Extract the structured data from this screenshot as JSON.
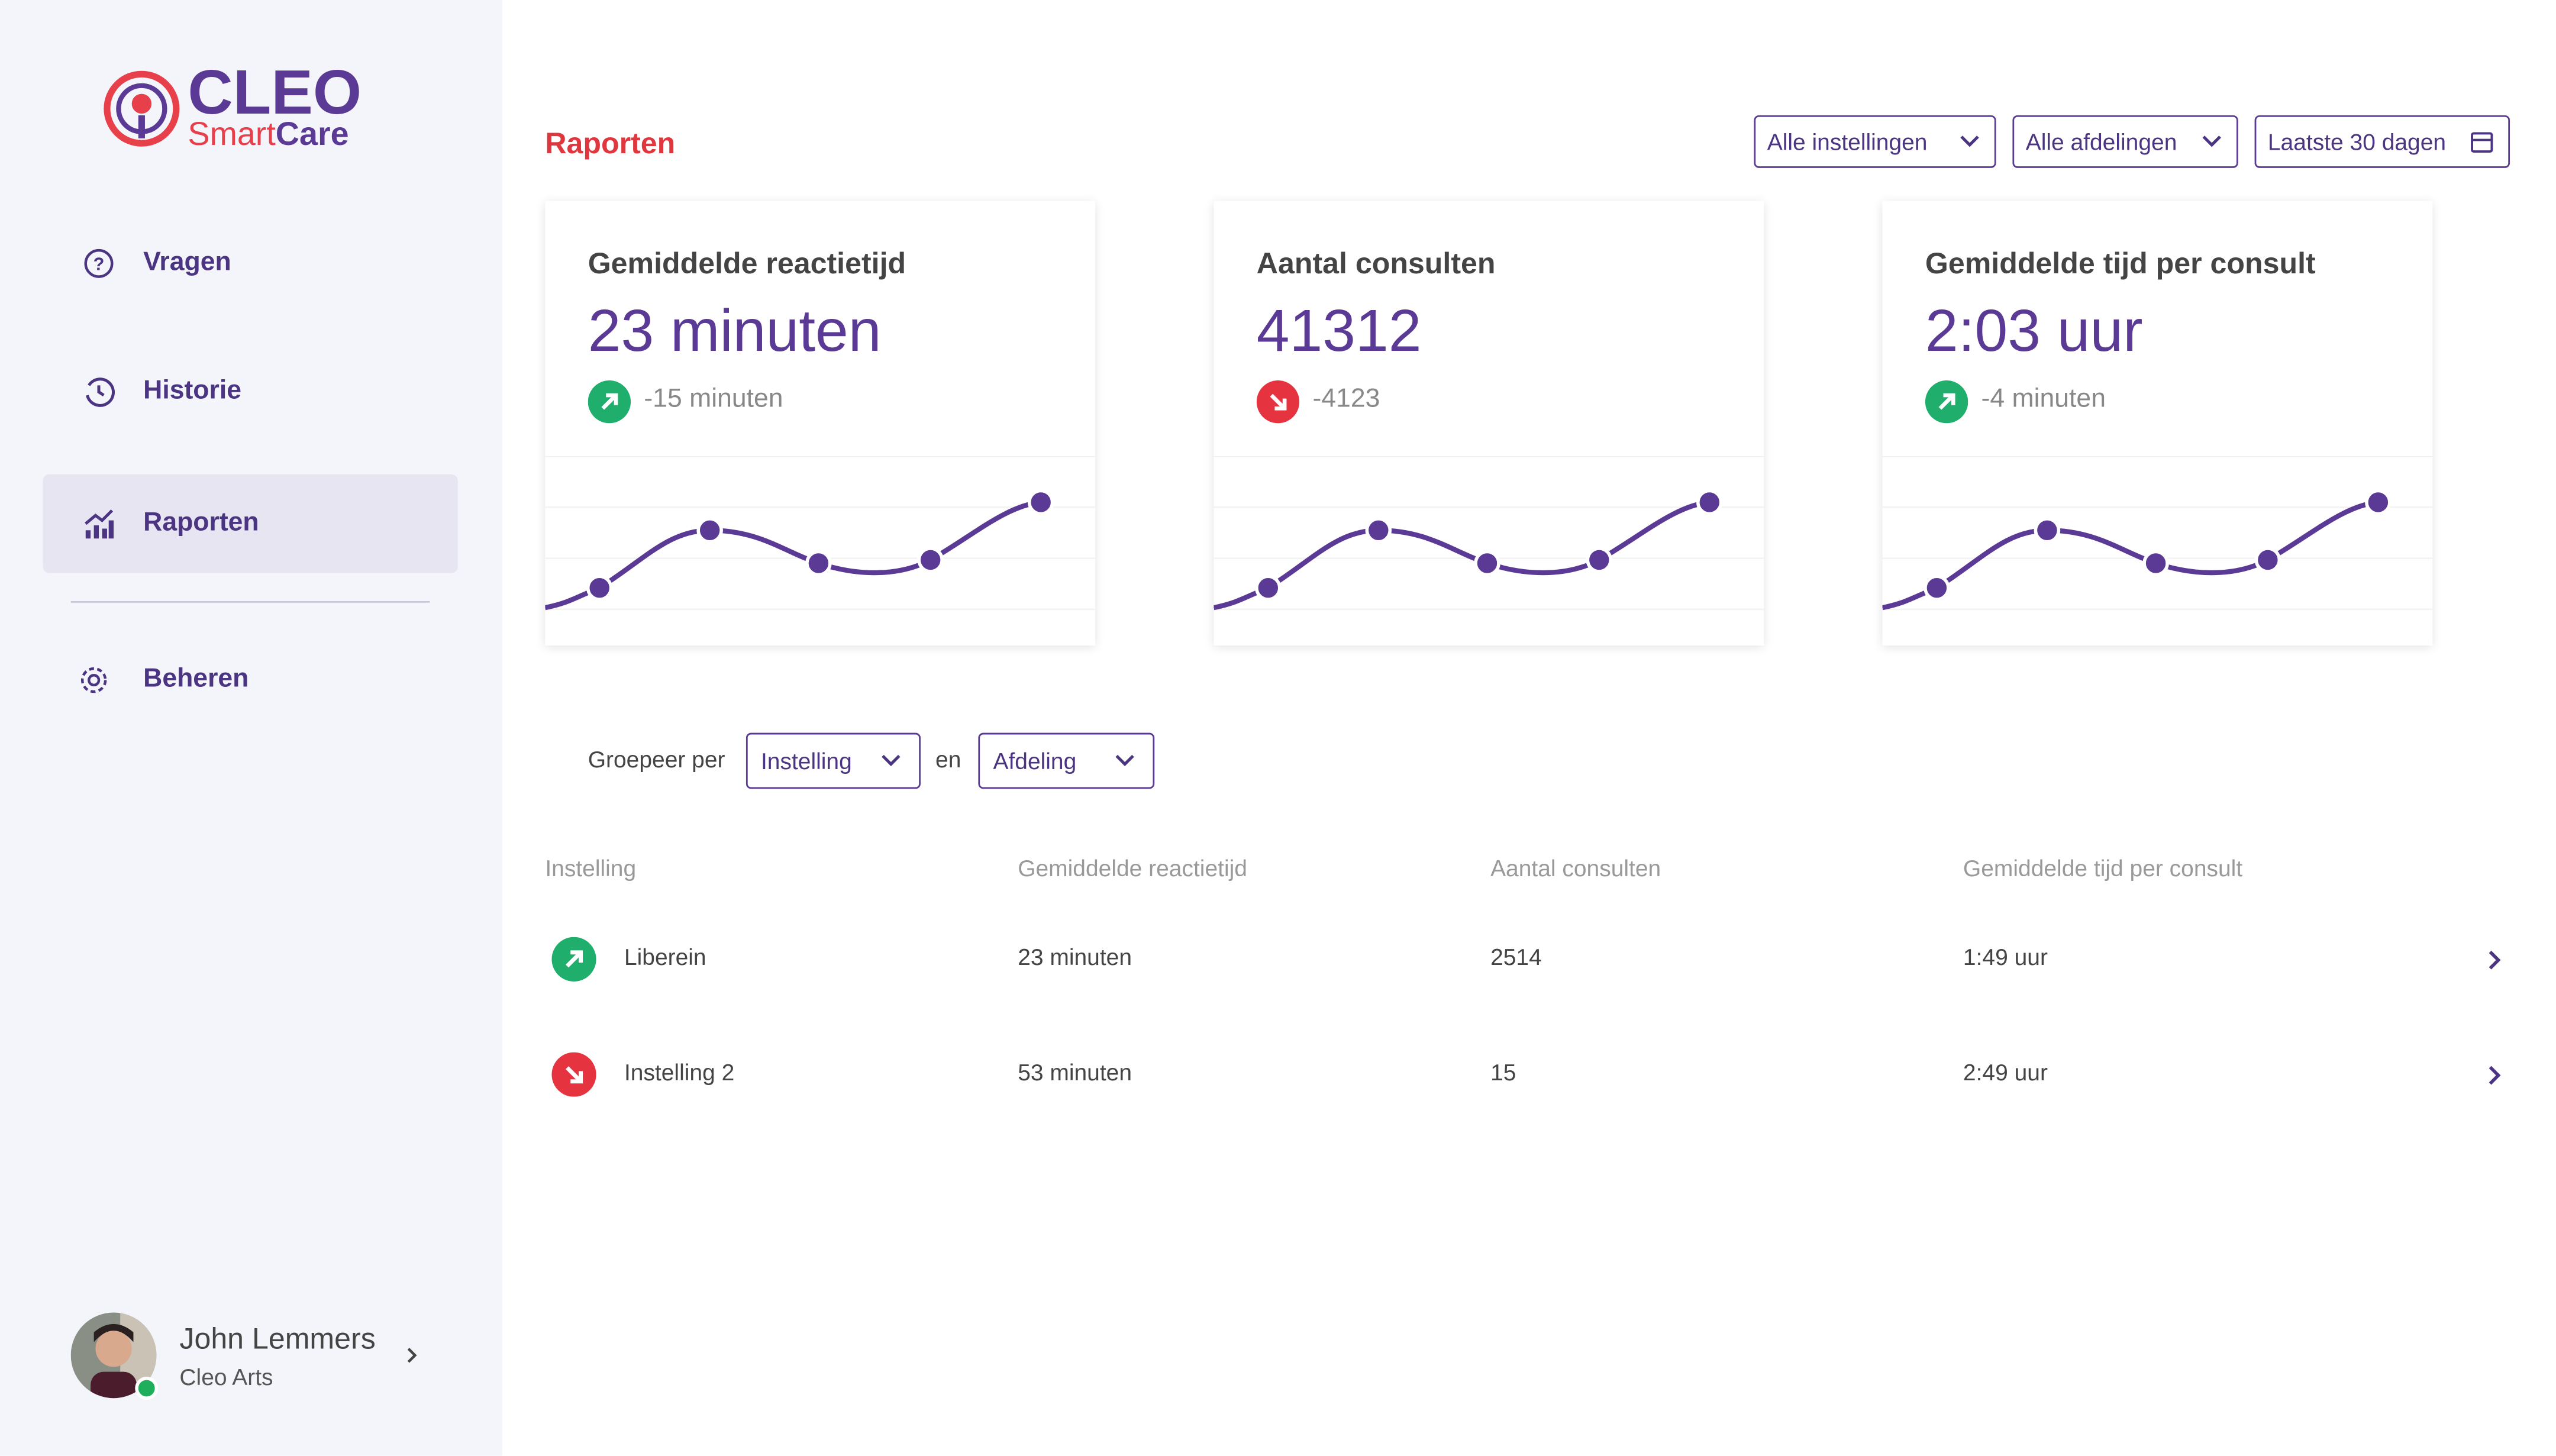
{
  "sidebar": {
    "logo": {
      "title": "CLEO",
      "smart": "Smart",
      "care": "Care"
    },
    "nav": [
      {
        "label": "Vragen"
      },
      {
        "label": "Historie"
      },
      {
        "label": "Raporten",
        "active": true
      },
      {
        "label": "Beheren"
      }
    ],
    "user": {
      "name": "John Lemmers",
      "role": "Cleo Arts"
    }
  },
  "header": {
    "title": "Raporten",
    "filters": [
      "Alle instellingen",
      "Alle afdelingen",
      "Laatste 30 dagen"
    ]
  },
  "cards": [
    {
      "title": "Gemiddelde reactietijd",
      "value": "23 minuten",
      "change": "-15 minuten",
      "trend": "up"
    },
    {
      "title": "Aantal consulten",
      "value": "41312",
      "change": "-4123",
      "trend": "down"
    },
    {
      "title": "Gemiddelde tijd per consult",
      "value": "2:03 uur",
      "change": "-4 minuten",
      "trend": "up"
    }
  ],
  "grouping": {
    "label": "Groepeer per",
    "first": "Instelling",
    "joiner": "en",
    "second": "Afdeling"
  },
  "table": {
    "columns": [
      "Instelling",
      "Gemiddelde reactietijd",
      "Aantal consulten",
      "Gemiddelde tijd per consult"
    ],
    "rows": [
      [
        "Liberein",
        "23 minuten",
        "2514",
        "1:49 uur"
      ],
      [
        "Instelling 2",
        "53 minuten",
        "15",
        "2:49 uur"
      ]
    ],
    "row_trends": [
      "up",
      "down"
    ]
  }
}
